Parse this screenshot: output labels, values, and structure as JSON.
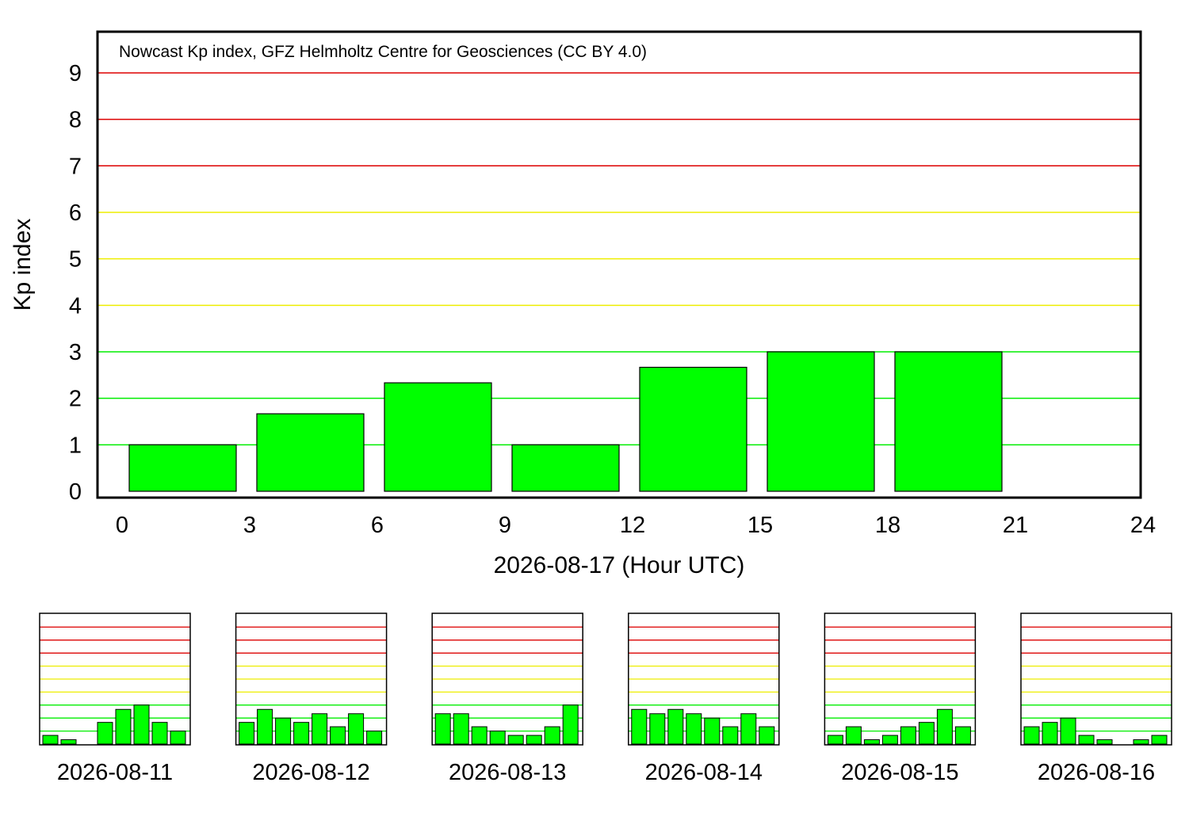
{
  "chart_data": [
    {
      "type": "bar",
      "annotation": "Nowcast Kp index, GFZ Helmholtz Centre for Geosciences (CC BY 4.0)",
      "xlabel": "2026-08-17 (Hour UTC)",
      "ylabel": "Kp index",
      "xlim": [
        0,
        24
      ],
      "ylim": [
        0,
        9
      ],
      "x_ticks": [
        "0",
        "3",
        "6",
        "9",
        "12",
        "15",
        "18",
        "21",
        "24"
      ],
      "y_ticks": [
        "0",
        "1",
        "2",
        "3",
        "4",
        "5",
        "6",
        "7",
        "8",
        "9"
      ],
      "grid": true,
      "grid_colors": {
        "1-3": "#00ee00",
        "4-6": "#eeee00",
        "7-9": "#dd0000"
      },
      "bar_color": "#00ff00",
      "categories": [
        "0-3",
        "3-6",
        "6-9",
        "9-12",
        "12-15",
        "15-18",
        "18-21"
      ],
      "values": [
        1.0,
        1.667,
        2.333,
        1.0,
        2.667,
        3.0,
        3.0
      ]
    },
    {
      "type": "bar",
      "xlabel": "2026-08-11",
      "ylim": [
        0,
        9
      ],
      "values": [
        0.667,
        0.333,
        0.0,
        1.667,
        2.667,
        3.0,
        1.667,
        1.0
      ]
    },
    {
      "type": "bar",
      "xlabel": "2026-08-12",
      "ylim": [
        0,
        9
      ],
      "values": [
        1.667,
        2.667,
        2.0,
        1.667,
        2.333,
        1.333,
        2.333,
        1.0
      ]
    },
    {
      "type": "bar",
      "xlabel": "2026-08-13",
      "ylim": [
        0,
        9
      ],
      "values": [
        2.333,
        2.333,
        1.333,
        1.0,
        0.667,
        0.667,
        1.333,
        3.0
      ]
    },
    {
      "type": "bar",
      "xlabel": "2026-08-14",
      "ylim": [
        0,
        9
      ],
      "values": [
        2.667,
        2.333,
        2.667,
        2.333,
        2.0,
        1.333,
        2.333,
        1.333
      ]
    },
    {
      "type": "bar",
      "xlabel": "2026-08-15",
      "ylim": [
        0,
        9
      ],
      "values": [
        0.667,
        1.333,
        0.333,
        0.667,
        1.333,
        1.667,
        2.667,
        1.333
      ]
    },
    {
      "type": "bar",
      "xlabel": "2026-08-16",
      "ylim": [
        0,
        9
      ],
      "values": [
        1.333,
        1.667,
        2.0,
        0.667,
        0.333,
        0.0,
        0.333,
        0.667
      ]
    }
  ]
}
